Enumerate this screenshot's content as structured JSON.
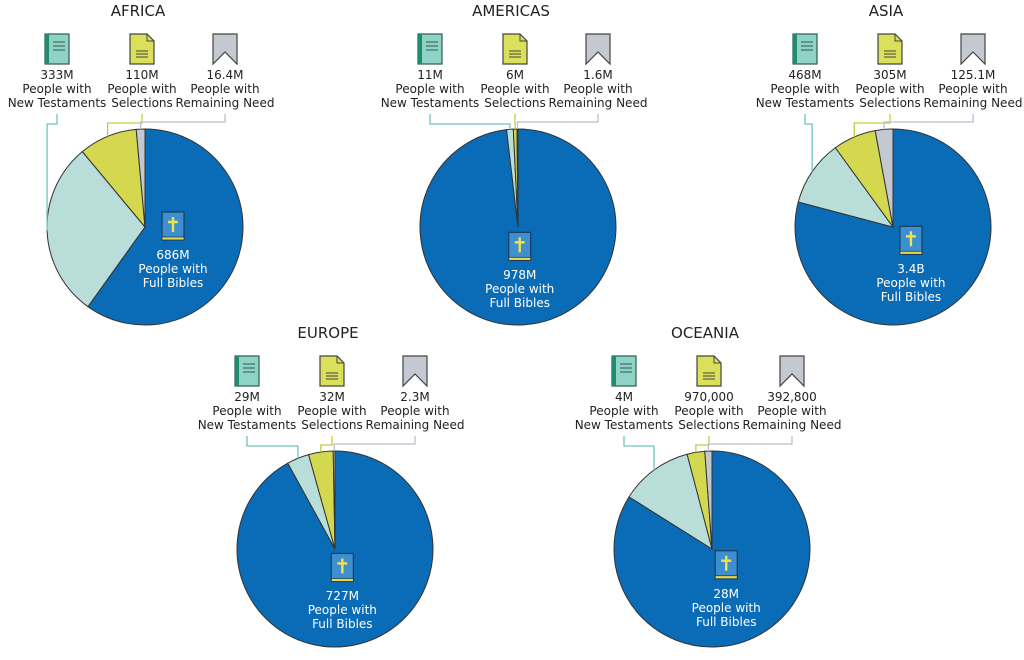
{
  "chart_data": [
    {
      "type": "pie",
      "title": "AFRICA",
      "categories": [
        "People with\nFull Bibles",
        "People with\nNew Testaments",
        "People with\nSelections",
        "People with\nRemaining Need"
      ],
      "values": [
        686000000,
        333000000,
        110000000,
        16400000
      ],
      "value_labels": [
        "686M",
        "333M",
        "110M",
        "16.4M"
      ],
      "colors": [
        "#0a6bb6",
        "#b9ddd9",
        "#d3d84f",
        "#c4c9d1"
      ]
    },
    {
      "type": "pie",
      "title": "AMERICAS",
      "categories": [
        "People with\nFull Bibles",
        "People with\nNew Testaments",
        "People with\nSelections",
        "People with\nRemaining Need"
      ],
      "values": [
        978000000,
        11000000,
        6000000,
        1600000
      ],
      "value_labels": [
        "978M",
        "11M",
        "6M",
        "1.6M"
      ],
      "colors": [
        "#0a6bb6",
        "#b9ddd9",
        "#d3d84f",
        "#c4c9d1"
      ]
    },
    {
      "type": "pie",
      "title": "ASIA",
      "categories": [
        "People with\nFull Bibles",
        "People with\nNew Testaments",
        "People with\nSelections",
        "People with\nRemaining Need"
      ],
      "values": [
        3400000000,
        468000000,
        305000000,
        125100000
      ],
      "value_labels": [
        "3.4B",
        "468M",
        "305M",
        "125.1M"
      ],
      "colors": [
        "#0a6bb6",
        "#b9ddd9",
        "#d3d84f",
        "#c4c9d1"
      ]
    },
    {
      "type": "pie",
      "title": "EUROPE",
      "categories": [
        "People with\nFull Bibles",
        "People with\nNew Testaments",
        "People with\nSelections",
        "People with\nRemaining Need"
      ],
      "values": [
        727000000,
        29000000,
        32000000,
        2300000
      ],
      "value_labels": [
        "727M",
        "29M",
        "32M",
        "2.3M"
      ],
      "colors": [
        "#0a6bb6",
        "#b9ddd9",
        "#d3d84f",
        "#c4c9d1"
      ]
    },
    {
      "type": "pie",
      "title": "OCEANIA",
      "categories": [
        "People with\nFull Bibles",
        "People with\nNew Testaments",
        "People with\nSelections",
        "People with\nRemaining Need"
      ],
      "values": [
        28000000,
        4000000,
        970000,
        392800
      ],
      "value_labels": [
        "28M",
        "4M",
        "970,000",
        "392,800"
      ],
      "colors": [
        "#0a6bb6",
        "#b9ddd9",
        "#d3d84f",
        "#c4c9d1"
      ]
    }
  ]
}
